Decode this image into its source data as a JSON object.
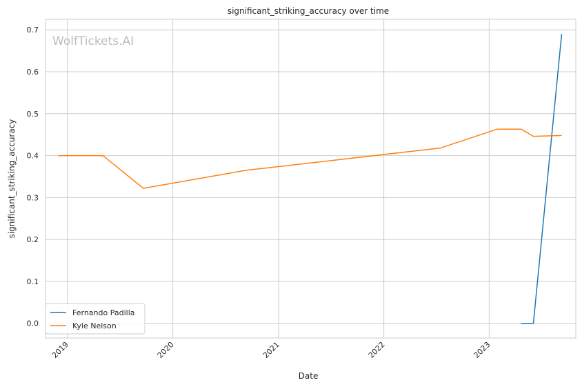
{
  "chart_data": {
    "type": "line",
    "title": "significant_striking_accuracy over time",
    "xlabel": "Date",
    "ylabel": "significant_striking_accuracy",
    "watermark": "WolfTickets.AI",
    "x_ticks": [
      "2019",
      "2020",
      "2021",
      "2022",
      "2023"
    ],
    "y_ticks": [
      "0.0",
      "0.1",
      "0.2",
      "0.3",
      "0.4",
      "0.5",
      "0.6",
      "0.7"
    ],
    "xlim": [
      "2018-10-17",
      "2023-10-28"
    ],
    "ylim": [
      -0.035,
      0.725
    ],
    "grid": true,
    "legend_position": "lower-left",
    "series": [
      {
        "name": "Fernando Padilla",
        "color": "#1f77b4",
        "points": [
          {
            "x": "2023-04-22",
            "y": 0.0
          },
          {
            "x": "2023-06-03",
            "y": 0.0
          },
          {
            "x": "2023-09-09",
            "y": 0.69
          }
        ]
      },
      {
        "name": "Kyle Nelson",
        "color": "#ff7f0e",
        "points": [
          {
            "x": "2018-11-30",
            "y": 0.4
          },
          {
            "x": "2019-05-04",
            "y": 0.4
          },
          {
            "x": "2019-09-21",
            "y": 0.322
          },
          {
            "x": "2020-09-12",
            "y": 0.365
          },
          {
            "x": "2022-07-16",
            "y": 0.418
          },
          {
            "x": "2023-01-28",
            "y": 0.463
          },
          {
            "x": "2023-04-22",
            "y": 0.463
          },
          {
            "x": "2023-06-03",
            "y": 0.446
          },
          {
            "x": "2023-09-09",
            "y": 0.448
          }
        ]
      }
    ]
  }
}
